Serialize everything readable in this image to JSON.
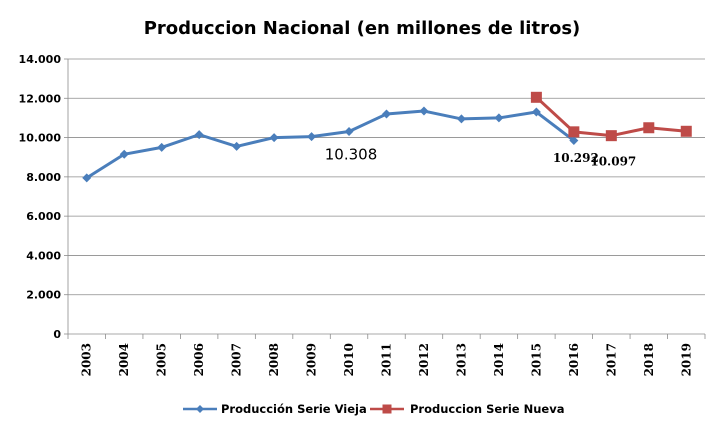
{
  "chart_data": {
    "type": "line",
    "title": "Produccion Nacional (en millones de litros)",
    "xlabel": "",
    "ylabel": "",
    "ylim": [
      0,
      14000
    ],
    "yticks": [
      0,
      2000,
      4000,
      6000,
      8000,
      10000,
      12000,
      14000
    ],
    "ytick_labels": [
      "0",
      "2.000",
      "4.000",
      "6.000",
      "8.000",
      "10.000",
      "12.000",
      "14.000"
    ],
    "categories": [
      "2003",
      "2004",
      "2005",
      "2006",
      "2007",
      "2008",
      "2009",
      "2010",
      "2011",
      "2012",
      "2013",
      "2014",
      "2015",
      "2016",
      "2017",
      "2018",
      "2019"
    ],
    "grid": true,
    "legend_position": "bottom",
    "series": [
      {
        "name": "Producción Serie Vieja",
        "color": "#4a7ebb",
        "marker": "diamond",
        "values": [
          7950,
          9150,
          9500,
          10150,
          9550,
          10000,
          10050,
          10308,
          11200,
          11350,
          10950,
          11000,
          11300,
          9850,
          null,
          null,
          null
        ]
      },
      {
        "name": "Produccion Serie Nueva",
        "color": "#be4b48",
        "marker": "square",
        "values": [
          null,
          null,
          null,
          null,
          null,
          null,
          null,
          null,
          null,
          null,
          null,
          null,
          12050,
          10292,
          10097,
          10500,
          10320
        ]
      }
    ],
    "annotations": [
      {
        "text": "10.308",
        "category": "2010",
        "value": 10308,
        "style": "big"
      },
      {
        "text": "10.292",
        "category": "2016",
        "value": 10292,
        "style": "small"
      },
      {
        "text": "10.097",
        "category": "2017",
        "value": 10097,
        "style": "small"
      }
    ]
  }
}
